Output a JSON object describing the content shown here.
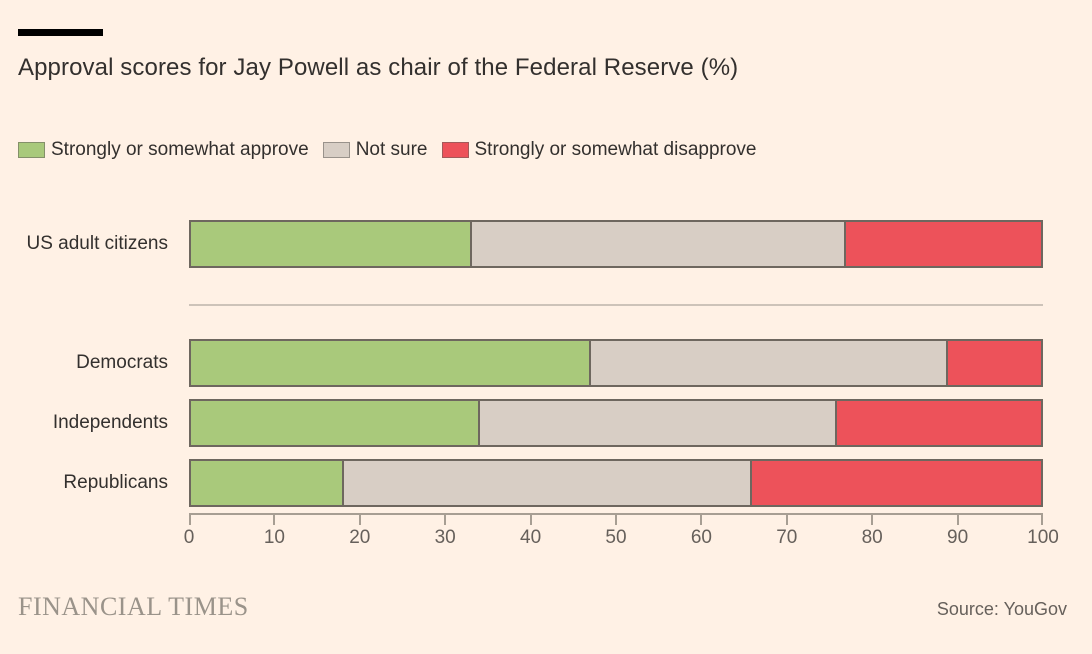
{
  "page": {
    "title": "Approval scores for Jay Powell as chair of the Federal Reserve (%)",
    "brand": "FINANCIAL TIMES",
    "source": "Source: YouGov"
  },
  "colors": {
    "background": "#fff1e5",
    "approve_green": "#a9c97b",
    "not_sure_gray": "#d8cec5",
    "disapprove_red": "#ed525a",
    "bar_border": "#6e675f",
    "title_text": "#33302e",
    "axis_text": "#66605b",
    "axis_line": "#a79e93",
    "separator_line": "#cdc3b9",
    "brand_text": "#9a938a",
    "accent_bar": "#000000"
  },
  "chart_data": {
    "type": "bar",
    "orientation": "horizontal",
    "stacked": true,
    "title": "Approval scores for Jay Powell as chair of the Federal Reserve (%)",
    "categories": [
      "US adult citizens",
      "Democrats",
      "Independents",
      "Republicans"
    ],
    "series": [
      {
        "name": "Strongly or somewhat approve",
        "color": "#a9c97b",
        "values": [
          33,
          47,
          34,
          18
        ]
      },
      {
        "name": "Not sure",
        "color": "#d8cec5",
        "values": [
          44,
          42,
          42,
          48
        ]
      },
      {
        "name": "Strongly or somewhat disapprove",
        "color": "#ed525a",
        "values": [
          23,
          11,
          24,
          34
        ]
      }
    ],
    "xlim": [
      0,
      100
    ],
    "x_ticks": [
      0,
      10,
      20,
      30,
      40,
      50,
      60,
      70,
      80,
      90,
      100
    ],
    "legend_position": "top-left",
    "grid": false,
    "group_separator_after_category": "US adult citizens",
    "source": "Source: YouGov"
  }
}
